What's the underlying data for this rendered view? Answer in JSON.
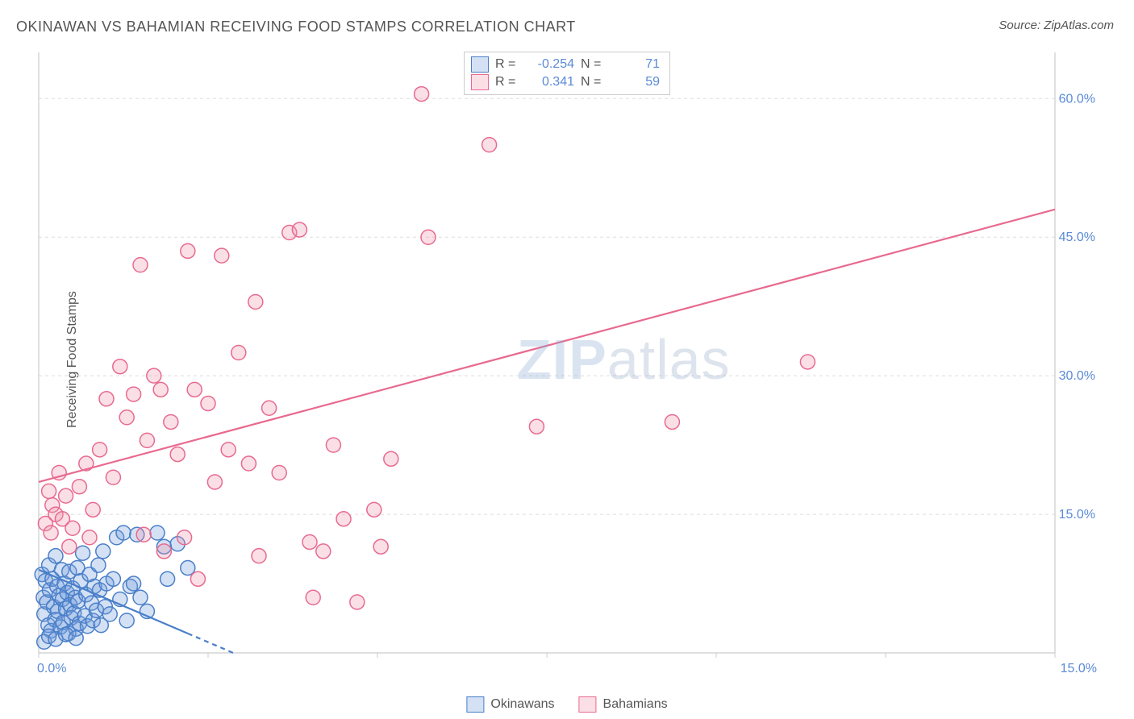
{
  "title": "OKINAWAN VS BAHAMIAN RECEIVING FOOD STAMPS CORRELATION CHART",
  "source_label": "Source: ",
  "source_name": "ZipAtlas.com",
  "ylabel": "Receiving Food Stamps",
  "watermark_bold": "ZIP",
  "watermark_light": "atlas",
  "chart": {
    "type": "scatter",
    "xlim": [
      0,
      15
    ],
    "ylim": [
      0,
      65
    ],
    "x_ticks": [
      0,
      2.5,
      5,
      7.5,
      10,
      12.5,
      15
    ],
    "x_tick_labels": [
      "0.0%",
      "",
      "",
      "",
      "",
      "",
      "15.0%"
    ],
    "y_gridlines": [
      15,
      30,
      45,
      60
    ],
    "y_tick_labels": [
      "15.0%",
      "30.0%",
      "45.0%",
      "60.0%"
    ],
    "border_color": "#cccccc",
    "grid_color": "#dddddd",
    "grid_dash": "4,4",
    "tick_label_color": "#5a8ad6",
    "tick_label_fontsize": 16,
    "background_color": "#ffffff",
    "marker_radius": 9,
    "marker_stroke_width": 1.5,
    "marker_fill_opacity": 0.25
  },
  "series": [
    {
      "name": "Okinawans",
      "color_stroke": "#4a7fc9",
      "color_fill": "#6f9cd9",
      "color_fill_opacity": 0.3,
      "trend": {
        "y_at_x0": 9.0,
        "y_at_xmax": -38.0,
        "solid_to_x": 2.2,
        "dashed_to_x": 3.2
      },
      "line_width": 2.2,
      "dash": "6,5",
      "R": "-0.254",
      "N": "71",
      "points": [
        [
          0.05,
          8.5
        ],
        [
          0.07,
          6.0
        ],
        [
          0.08,
          4.2
        ],
        [
          0.1,
          7.8
        ],
        [
          0.12,
          5.5
        ],
        [
          0.14,
          3.0
        ],
        [
          0.15,
          9.5
        ],
        [
          0.16,
          6.8
        ],
        [
          0.18,
          2.4
        ],
        [
          0.2,
          8.0
        ],
        [
          0.22,
          5.0
        ],
        [
          0.24,
          3.6
        ],
        [
          0.25,
          10.5
        ],
        [
          0.27,
          7.2
        ],
        [
          0.28,
          4.5
        ],
        [
          0.3,
          6.2
        ],
        [
          0.32,
          2.8
        ],
        [
          0.34,
          9.0
        ],
        [
          0.35,
          5.8
        ],
        [
          0.36,
          3.3
        ],
        [
          0.38,
          7.5
        ],
        [
          0.4,
          4.8
        ],
        [
          0.42,
          6.5
        ],
        [
          0.44,
          2.1
        ],
        [
          0.45,
          8.8
        ],
        [
          0.46,
          5.2
        ],
        [
          0.48,
          3.8
        ],
        [
          0.5,
          7.0
        ],
        [
          0.52,
          4.3
        ],
        [
          0.54,
          6.0
        ],
        [
          0.55,
          2.6
        ],
        [
          0.57,
          9.2
        ],
        [
          0.58,
          5.6
        ],
        [
          0.6,
          3.2
        ],
        [
          0.62,
          7.8
        ],
        [
          0.65,
          10.8
        ],
        [
          0.68,
          4.0
        ],
        [
          0.7,
          6.3
        ],
        [
          0.72,
          2.9
        ],
        [
          0.75,
          8.5
        ],
        [
          0.78,
          5.4
        ],
        [
          0.8,
          3.5
        ],
        [
          0.82,
          7.2
        ],
        [
          0.85,
          4.6
        ],
        [
          0.88,
          9.5
        ],
        [
          0.9,
          6.8
        ],
        [
          0.92,
          3.0
        ],
        [
          0.95,
          11.0
        ],
        [
          0.98,
          5.0
        ],
        [
          1.0,
          7.5
        ],
        [
          1.05,
          4.2
        ],
        [
          1.1,
          8.0
        ],
        [
          1.15,
          12.5
        ],
        [
          1.2,
          5.8
        ],
        [
          1.25,
          13.0
        ],
        [
          1.3,
          3.5
        ],
        [
          1.35,
          7.2
        ],
        [
          1.45,
          12.8
        ],
        [
          1.5,
          6.0
        ],
        [
          1.6,
          4.5
        ],
        [
          1.75,
          13.0
        ],
        [
          1.85,
          11.5
        ],
        [
          1.9,
          8.0
        ],
        [
          2.05,
          11.8
        ],
        [
          2.2,
          9.2
        ],
        [
          0.08,
          1.2
        ],
        [
          0.15,
          1.8
        ],
        [
          0.25,
          1.5
        ],
        [
          0.4,
          2.0
        ],
        [
          0.55,
          1.6
        ],
        [
          1.4,
          7.5
        ]
      ]
    },
    {
      "name": "Bahamians",
      "color_stroke": "#e86a8f",
      "color_fill": "#f094ad",
      "color_fill_opacity": 0.3,
      "trend": {
        "y_at_x0": 18.5,
        "y_at_xmax": 48.0,
        "solid_to_x": 15.0,
        "dashed_to_x": 15.0
      },
      "line_width": 2.2,
      "R": "0.341",
      "N": "59",
      "points": [
        [
          0.1,
          14.0
        ],
        [
          0.15,
          17.5
        ],
        [
          0.18,
          13.0
        ],
        [
          0.2,
          16.0
        ],
        [
          0.25,
          15.0
        ],
        [
          0.3,
          19.5
        ],
        [
          0.35,
          14.5
        ],
        [
          0.4,
          17.0
        ],
        [
          0.5,
          13.5
        ],
        [
          0.6,
          18.0
        ],
        [
          0.7,
          20.5
        ],
        [
          0.8,
          15.5
        ],
        [
          0.9,
          22.0
        ],
        [
          1.0,
          27.5
        ],
        [
          1.1,
          19.0
        ],
        [
          1.2,
          31.0
        ],
        [
          1.3,
          25.5
        ],
        [
          1.4,
          28.0
        ],
        [
          1.5,
          42.0
        ],
        [
          1.6,
          23.0
        ],
        [
          1.7,
          30.0
        ],
        [
          1.8,
          28.5
        ],
        [
          1.85,
          11.0
        ],
        [
          1.95,
          25.0
        ],
        [
          2.05,
          21.5
        ],
        [
          2.15,
          12.5
        ],
        [
          2.2,
          43.5
        ],
        [
          2.3,
          28.5
        ],
        [
          2.35,
          8.0
        ],
        [
          2.5,
          27.0
        ],
        [
          2.6,
          18.5
        ],
        [
          2.7,
          43.0
        ],
        [
          2.8,
          22.0
        ],
        [
          2.95,
          32.5
        ],
        [
          3.1,
          20.5
        ],
        [
          3.2,
          38.0
        ],
        [
          3.25,
          10.5
        ],
        [
          3.4,
          26.5
        ],
        [
          3.55,
          19.5
        ],
        [
          3.7,
          45.5
        ],
        [
          3.85,
          45.8
        ],
        [
          4.0,
          12.0
        ],
        [
          4.05,
          6.0
        ],
        [
          4.2,
          11.0
        ],
        [
          4.35,
          22.5
        ],
        [
          4.5,
          14.5
        ],
        [
          4.7,
          5.5
        ],
        [
          4.95,
          15.5
        ],
        [
          5.05,
          11.5
        ],
        [
          5.2,
          21.0
        ],
        [
          5.65,
          60.5
        ],
        [
          5.75,
          45.0
        ],
        [
          6.65,
          55.0
        ],
        [
          7.35,
          24.5
        ],
        [
          9.35,
          25.0
        ],
        [
          11.35,
          31.5
        ],
        [
          0.45,
          11.5
        ],
        [
          0.75,
          12.5
        ],
        [
          1.55,
          12.8
        ]
      ]
    }
  ],
  "legend_labels": {
    "R": "R =",
    "N": "N ="
  }
}
